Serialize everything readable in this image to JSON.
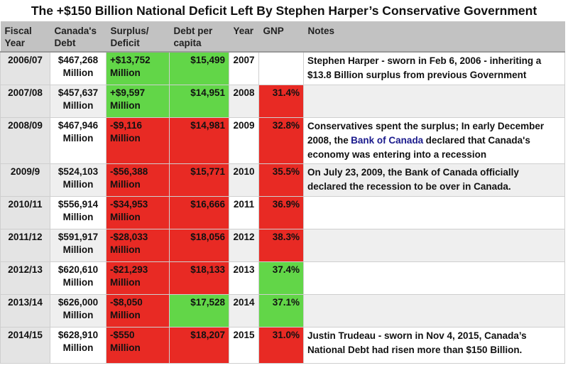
{
  "title": "The +$150 Billion National Deficit Left By Stephen Harper’s Conservative Government",
  "colors": {
    "green": "#62d648",
    "red": "#e82a24",
    "link": "#1a1a8c",
    "header": "#c2c2c2"
  },
  "chart_data": {
    "type": "table",
    "title": "The +$150 Billion National Deficit Left By Stephen Harper’s Conservative Government",
    "columns": [
      "Fiscal Year",
      "Canada's Debt",
      "Surplus/ Deficit",
      "Debt per capita",
      "Year",
      "GNP",
      "Notes"
    ],
    "rows": [
      {
        "fiscal_year": "2006/07",
        "debt": "$467,268",
        "debt_unit": "Million",
        "surplus": "+$13,752",
        "surplus_unit": "Million",
        "surplus_color": "green",
        "per_capita": "$15,499",
        "per_capita_color": "green",
        "year": "2007",
        "gnp": "",
        "gnp_color": "",
        "notes": "Stephen Harper - sworn in Feb 6, 2006 - inheriting a $13.8 Billion surplus from previous Government"
      },
      {
        "fiscal_year": "2007/08",
        "debt": "$457,637",
        "debt_unit": "Million",
        "surplus": "+$9,597",
        "surplus_unit": "Million",
        "surplus_color": "green",
        "per_capita": "$14,951",
        "per_capita_color": "green",
        "year": "2008",
        "gnp": "31.4%",
        "gnp_color": "red",
        "notes": ""
      },
      {
        "fiscal_year": "2008/09",
        "debt": "$467,946",
        "debt_unit": "Million",
        "surplus": "-$9,116",
        "surplus_unit": "Million",
        "surplus_color": "red",
        "per_capita": "$14,981",
        "per_capita_color": "red",
        "year": "2009",
        "gnp": "32.8%",
        "gnp_color": "red",
        "notes_before": "Conservatives spent the surplus; In early December 2008, the ",
        "notes_link": "Bank of Canada",
        "notes_after": " declared that Canada's economy was entering into a recession"
      },
      {
        "fiscal_year": "2009/9",
        "debt": "$524,103",
        "debt_unit": "Million",
        "surplus": "-$56,388",
        "surplus_unit": "Million",
        "surplus_color": "red",
        "per_capita": "$15,771",
        "per_capita_color": "red",
        "year": "2010",
        "gnp": "35.5%",
        "gnp_color": "red",
        "notes": "On July 23, 2009, the Bank of Canada officially declared the recession to be over in Canada."
      },
      {
        "fiscal_year": "2010/11",
        "debt": "$556,914",
        "debt_unit": "Million",
        "surplus": "-$34,953",
        "surplus_unit": "Million",
        "surplus_color": "red",
        "per_capita": "$16,666",
        "per_capita_color": "red",
        "year": "2011",
        "gnp": "36.9%",
        "gnp_color": "red",
        "notes": ""
      },
      {
        "fiscal_year": "2011/12",
        "debt": "$591,917",
        "debt_unit": "Million",
        "surplus": "-$28,033",
        "surplus_unit": "Million",
        "surplus_color": "red",
        "per_capita": "$18,056",
        "per_capita_color": "red",
        "year": "2012",
        "gnp": "38.3%",
        "gnp_color": "red",
        "notes": ""
      },
      {
        "fiscal_year": "2012/13",
        "debt": "$620,610",
        "debt_unit": "Million",
        "surplus": "-$21,293",
        "surplus_unit": "Million",
        "surplus_color": "red",
        "per_capita": "$18,133",
        "per_capita_color": "red",
        "year": "2013",
        "gnp": "37.4%",
        "gnp_color": "green",
        "notes": ""
      },
      {
        "fiscal_year": "2013/14",
        "debt": "$626,000",
        "debt_unit": "Million",
        "surplus": "-$8,050",
        "surplus_unit": "Million",
        "surplus_color": "red",
        "per_capita": "$17,528",
        "per_capita_color": "green",
        "year": "2014",
        "gnp": "37.1%",
        "gnp_color": "green",
        "notes": ""
      },
      {
        "fiscal_year": "2014/15",
        "debt": "$628,910",
        "debt_unit": "Million",
        "surplus": "-$550",
        "surplus_unit": "Million",
        "surplus_color": "red",
        "per_capita": "$18,207",
        "per_capita_color": "red",
        "year": "2015",
        "gnp": "31.0%",
        "gnp_color": "red",
        "notes": "Justin Trudeau - sworn in Nov 4, 2015, Canada’s National Debt had risen more than $150 Billion."
      }
    ]
  }
}
